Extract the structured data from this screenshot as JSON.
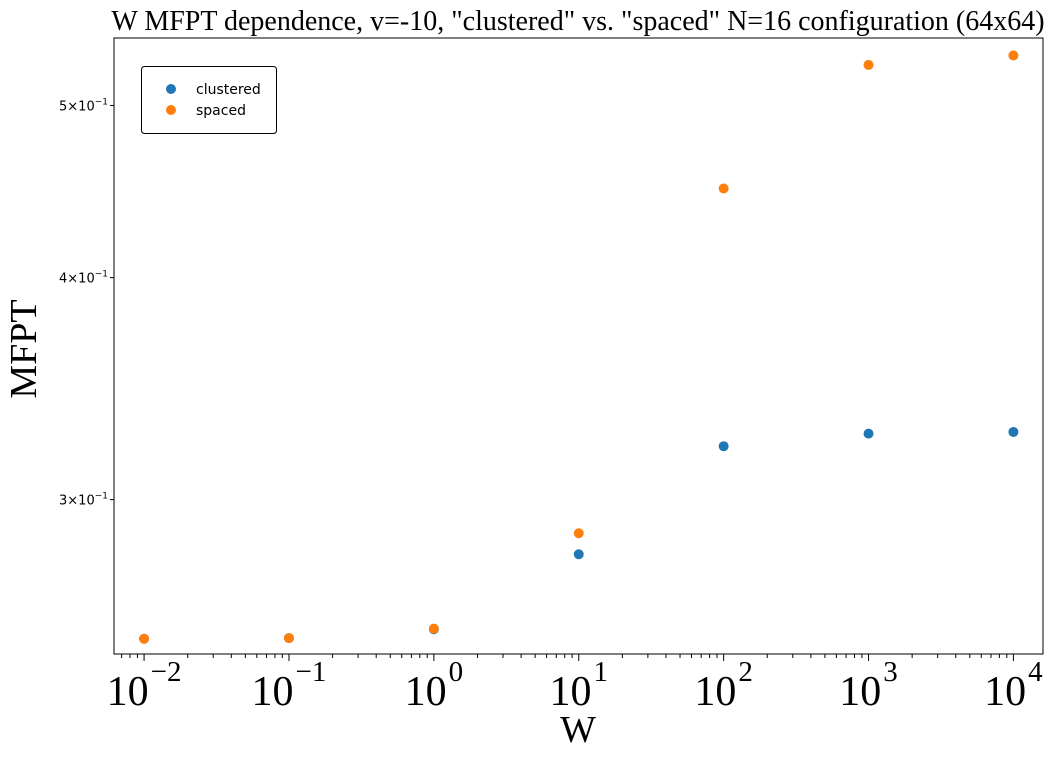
{
  "chart_data": {
    "type": "scatter",
    "title": "W MFPT dependence, v=-10, \"clustered\" vs. \"spaced\" N=16 configuration (64x64)",
    "xlabel": "W",
    "ylabel": "MFPT",
    "xscale": "log",
    "yscale": "log",
    "xlim": [
      0.0062,
      16000
    ],
    "ylim": [
      0.2456,
      0.5457
    ],
    "grid": false,
    "legend_position": "upper-left",
    "x": [
      0.01,
      0.1,
      1,
      10,
      100,
      1000,
      10000
    ],
    "series": [
      {
        "name": "clustered",
        "color": "#1f77b4",
        "values": [
          0.2505,
          0.2507,
          0.2536,
          0.2795,
          0.3215,
          0.3268,
          0.3275
        ]
      },
      {
        "name": "spaced",
        "color": "#ff7f0e",
        "values": [
          0.2505,
          0.2507,
          0.2538,
          0.2872,
          0.449,
          0.527,
          0.5335
        ]
      }
    ],
    "x_ticks": [
      {
        "value": 0.01,
        "base": "10",
        "exp": "−2"
      },
      {
        "value": 0.1,
        "base": "10",
        "exp": "−1"
      },
      {
        "value": 1,
        "base": "10",
        "exp": "0"
      },
      {
        "value": 10,
        "base": "10",
        "exp": "1"
      },
      {
        "value": 100,
        "base": "10",
        "exp": "2"
      },
      {
        "value": 1000,
        "base": "10",
        "exp": "3"
      },
      {
        "value": 10000,
        "base": "10",
        "exp": "4"
      }
    ],
    "y_ticks": [
      {
        "value": 0.3,
        "mantissa": "3",
        "times": "×10",
        "exp": "−1"
      },
      {
        "value": 0.4,
        "mantissa": "4",
        "times": "×10",
        "exp": "−1"
      },
      {
        "value": 0.5,
        "mantissa": "5",
        "times": "×10",
        "exp": "−1"
      }
    ]
  }
}
